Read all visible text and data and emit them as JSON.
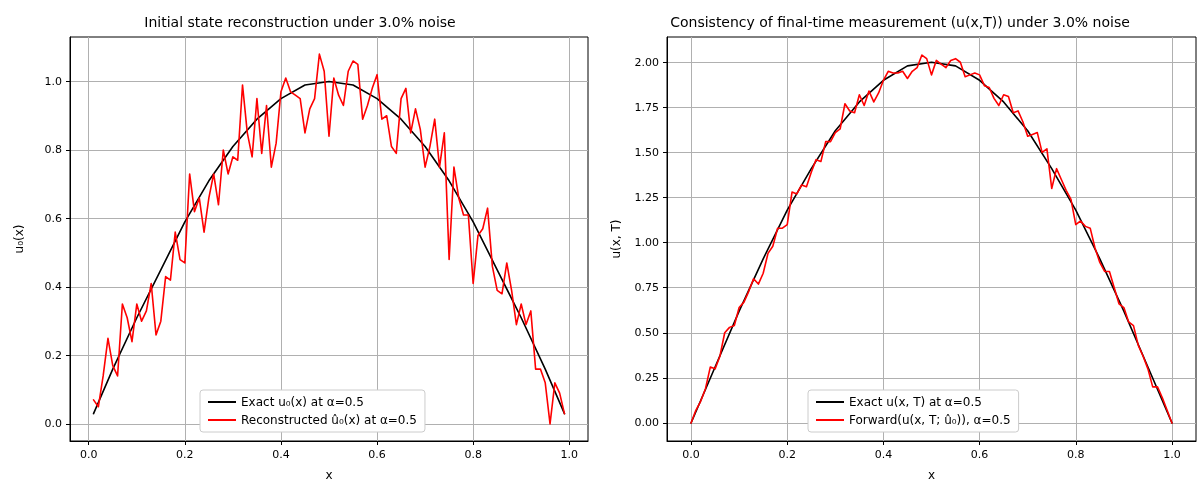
{
  "chart_data": [
    {
      "type": "line",
      "title": "Initial state reconstruction under 3.0% noise",
      "xlabel": "x",
      "ylabel": "u₀(x)",
      "xlim": [
        -0.039,
        1.039
      ],
      "ylim": [
        -0.05,
        1.13
      ],
      "xticks": [
        {
          "value": 0,
          "label": "0.0"
        },
        {
          "value": 0.2,
          "label": "0.2"
        },
        {
          "value": 0.4,
          "label": "0.4"
        },
        {
          "value": 0.6,
          "label": "0.6"
        },
        {
          "value": 0.8,
          "label": "0.8"
        },
        {
          "value": 1,
          "label": "1.0"
        }
      ],
      "yticks": [
        {
          "value": 0,
          "label": "0.0"
        },
        {
          "value": 0.2,
          "label": "0.2"
        },
        {
          "value": 0.4,
          "label": "0.4"
        },
        {
          "value": 0.6,
          "label": "0.6"
        },
        {
          "value": 0.8,
          "label": "0.8"
        },
        {
          "value": 1,
          "label": "1.0"
        }
      ],
      "grid": true,
      "legend": "bottom",
      "marker": "none",
      "line_style": "solid",
      "series": [
        {
          "name": "Exact u₀(x) at α=0.5",
          "color": "#000000",
          "x": [
            0.01,
            0.05,
            0.1,
            0.15,
            0.2,
            0.25,
            0.3,
            0.35,
            0.4,
            0.45,
            0.5,
            0.55,
            0.6,
            0.65,
            0.7,
            0.75,
            0.8,
            0.85,
            0.9,
            0.95,
            0.99
          ],
          "values": [
            0.03,
            0.16,
            0.31,
            0.45,
            0.59,
            0.71,
            0.81,
            0.89,
            0.95,
            0.99,
            1.0,
            0.99,
            0.95,
            0.89,
            0.81,
            0.71,
            0.59,
            0.45,
            0.31,
            0.16,
            0.03
          ]
        },
        {
          "name": "Reconstructed û₀(x) at α=0.5",
          "color": "#ff0000",
          "x": [
            0.01,
            0.02,
            0.03,
            0.04,
            0.05,
            0.06,
            0.07,
            0.08,
            0.09,
            0.1,
            0.11,
            0.12,
            0.13,
            0.14,
            0.15,
            0.16,
            0.17,
            0.18,
            0.19,
            0.2,
            0.21,
            0.22,
            0.23,
            0.24,
            0.25,
            0.26,
            0.27,
            0.28,
            0.29,
            0.3,
            0.31,
            0.32,
            0.33,
            0.34,
            0.35,
            0.36,
            0.37,
            0.38,
            0.39,
            0.4,
            0.41,
            0.42,
            0.43,
            0.44,
            0.45,
            0.46,
            0.47,
            0.48,
            0.49,
            0.5,
            0.51,
            0.52,
            0.53,
            0.54,
            0.55,
            0.56,
            0.57,
            0.58,
            0.59,
            0.6,
            0.61,
            0.62,
            0.63,
            0.64,
            0.65,
            0.66,
            0.67,
            0.68,
            0.69,
            0.7,
            0.71,
            0.72,
            0.73,
            0.74,
            0.75,
            0.76,
            0.77,
            0.78,
            0.79,
            0.8,
            0.81,
            0.82,
            0.83,
            0.84,
            0.85,
            0.86,
            0.87,
            0.88,
            0.89,
            0.9,
            0.91,
            0.92,
            0.93,
            0.94,
            0.95,
            0.96,
            0.97,
            0.98,
            0.99
          ],
          "values": [
            0.07,
            0.05,
            0.14,
            0.25,
            0.17,
            0.14,
            0.35,
            0.31,
            0.24,
            0.35,
            0.3,
            0.33,
            0.41,
            0.26,
            0.3,
            0.43,
            0.42,
            0.56,
            0.48,
            0.47,
            0.73,
            0.62,
            0.66,
            0.56,
            0.66,
            0.73,
            0.64,
            0.8,
            0.73,
            0.78,
            0.77,
            0.99,
            0.85,
            0.78,
            0.95,
            0.79,
            0.93,
            0.75,
            0.82,
            0.97,
            1.01,
            0.97,
            0.96,
            0.95,
            0.85,
            0.92,
            0.95,
            1.08,
            1.03,
            0.84,
            1.01,
            0.96,
            0.93,
            1.03,
            1.06,
            1.05,
            0.89,
            0.93,
            0.98,
            1.02,
            0.89,
            0.9,
            0.81,
            0.79,
            0.95,
            0.98,
            0.85,
            0.92,
            0.86,
            0.75,
            0.81,
            0.89,
            0.75,
            0.85,
            0.48,
            0.75,
            0.66,
            0.61,
            0.61,
            0.41,
            0.55,
            0.57,
            0.63,
            0.46,
            0.39,
            0.38,
            0.47,
            0.39,
            0.29,
            0.35,
            0.29,
            0.33,
            0.16,
            0.16,
            0.12,
            0.0,
            0.12,
            0.09,
            0.03
          ]
        }
      ]
    },
    {
      "type": "line",
      "title": "Consistency of final-time measurement (u(x,T)) under 3.0% noise",
      "xlabel": "x",
      "ylabel": "u(x, T)",
      "xlim": [
        -0.05,
        1.05
      ],
      "ylim": [
        -0.1,
        2.14
      ],
      "xticks": [
        {
          "value": 0,
          "label": "0.0"
        },
        {
          "value": 0.2,
          "label": "0.2"
        },
        {
          "value": 0.4,
          "label": "0.4"
        },
        {
          "value": 0.6,
          "label": "0.6"
        },
        {
          "value": 0.8,
          "label": "0.8"
        },
        {
          "value": 1,
          "label": "1.0"
        }
      ],
      "yticks": [
        {
          "value": 0,
          "label": "0.00"
        },
        {
          "value": 0.25,
          "label": "0.25"
        },
        {
          "value": 0.5,
          "label": "0.50"
        },
        {
          "value": 0.75,
          "label": "0.75"
        },
        {
          "value": 1,
          "label": "1.00"
        },
        {
          "value": 1.25,
          "label": "1.25"
        },
        {
          "value": 1.5,
          "label": "1.50"
        },
        {
          "value": 1.75,
          "label": "1.75"
        },
        {
          "value": 2,
          "label": "2.00"
        }
      ],
      "grid": true,
      "legend": "bottom",
      "marker": "none",
      "line_style": "solid",
      "series": [
        {
          "name": "Exact u(x, T) at α=0.5",
          "color": "#000000",
          "x": [
            0,
            0.05,
            0.1,
            0.15,
            0.2,
            0.25,
            0.3,
            0.35,
            0.4,
            0.45,
            0.5,
            0.55,
            0.6,
            0.65,
            0.7,
            0.75,
            0.8,
            0.85,
            0.9,
            0.95,
            1.0
          ],
          "values": [
            0,
            0.31,
            0.62,
            0.91,
            1.18,
            1.41,
            1.62,
            1.78,
            1.9,
            1.98,
            2.0,
            1.98,
            1.9,
            1.78,
            1.62,
            1.41,
            1.18,
            0.91,
            0.62,
            0.31,
            0
          ]
        },
        {
          "name": "Forward(u(x, T; û₀)), α=0.5",
          "color": "#ff0000",
          "x": [
            0,
            0.01,
            0.02,
            0.03,
            0.04,
            0.05,
            0.06,
            0.07,
            0.08,
            0.09,
            0.1,
            0.11,
            0.12,
            0.13,
            0.14,
            0.15,
            0.16,
            0.17,
            0.18,
            0.19,
            0.2,
            0.21,
            0.22,
            0.23,
            0.24,
            0.25,
            0.26,
            0.27,
            0.28,
            0.29,
            0.3,
            0.31,
            0.32,
            0.33,
            0.34,
            0.35,
            0.36,
            0.37,
            0.38,
            0.39,
            0.4,
            0.41,
            0.42,
            0.43,
            0.44,
            0.45,
            0.46,
            0.47,
            0.48,
            0.49,
            0.5,
            0.51,
            0.52,
            0.53,
            0.54,
            0.55,
            0.56,
            0.57,
            0.58,
            0.59,
            0.6,
            0.61,
            0.62,
            0.63,
            0.64,
            0.65,
            0.66,
            0.67,
            0.68,
            0.69,
            0.7,
            0.71,
            0.72,
            0.73,
            0.74,
            0.75,
            0.76,
            0.77,
            0.78,
            0.79,
            0.8,
            0.81,
            0.82,
            0.83,
            0.84,
            0.85,
            0.86,
            0.87,
            0.88,
            0.89,
            0.9,
            0.91,
            0.92,
            0.93,
            0.94,
            0.95,
            0.96,
            0.97,
            0.98,
            0.99,
            1.0
          ],
          "values": [
            0,
            0.07,
            0.12,
            0.19,
            0.31,
            0.3,
            0.37,
            0.5,
            0.53,
            0.54,
            0.64,
            0.67,
            0.73,
            0.8,
            0.77,
            0.83,
            0.94,
            0.98,
            1.08,
            1.08,
            1.1,
            1.28,
            1.27,
            1.32,
            1.31,
            1.39,
            1.46,
            1.45,
            1.56,
            1.56,
            1.61,
            1.63,
            1.77,
            1.73,
            1.72,
            1.82,
            1.76,
            1.84,
            1.78,
            1.83,
            1.9,
            1.95,
            1.94,
            1.94,
            1.95,
            1.91,
            1.95,
            1.97,
            2.04,
            2.02,
            1.93,
            2.01,
            1.99,
            1.97,
            2.01,
            2.02,
            2.0,
            1.92,
            1.93,
            1.94,
            1.93,
            1.87,
            1.86,
            1.8,
            1.76,
            1.82,
            1.81,
            1.72,
            1.73,
            1.67,
            1.59,
            1.6,
            1.61,
            1.5,
            1.52,
            1.3,
            1.41,
            1.35,
            1.29,
            1.24,
            1.1,
            1.12,
            1.09,
            1.08,
            0.97,
            0.89,
            0.84,
            0.84,
            0.75,
            0.66,
            0.64,
            0.56,
            0.54,
            0.43,
            0.37,
            0.3,
            0.2,
            0.2,
            0.14,
            0.07,
            0
          ]
        }
      ]
    }
  ]
}
